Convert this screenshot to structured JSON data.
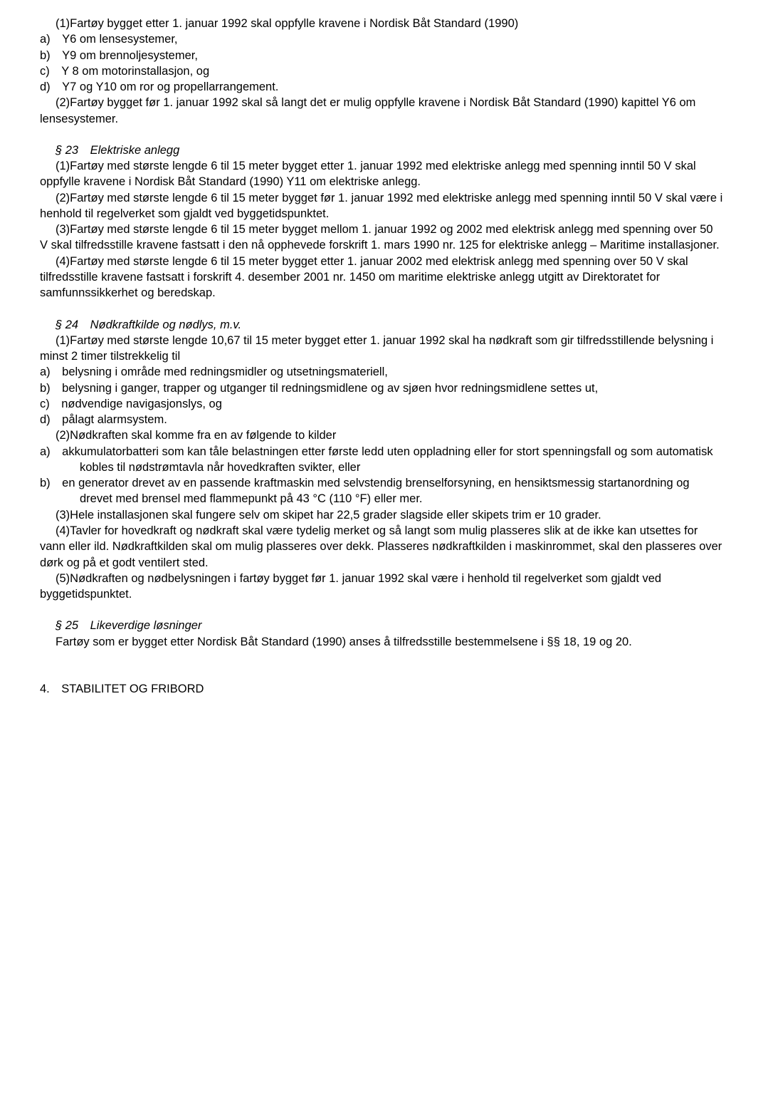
{
  "colors": {
    "text": "#000000",
    "background": "#ffffff"
  },
  "typography": {
    "font_family": "Verdana",
    "font_size_pt": 12,
    "line_height": 1.35
  },
  "p1_1": "(1)Fartøy bygget etter 1. januar 1992 skal oppfylle kravene i Nordisk Båt Standard (1990)",
  "p1_a": "a) Y6 om lensesystemer,",
  "p1_b": "b) Y9 om brennoljesystemer,",
  "p1_c": "c) Y 8 om motorinstallasjon, og",
  "p1_d": "d) Y7 og Y10 om ror og propellarrangement.",
  "p1_2": "(2)Fartøy bygget før 1. januar 1992 skal så langt det er mulig oppfylle kravene i Nordisk Båt Standard (1990) kapittel Y6 om lensesystemer.",
  "s23_h": "§ 23 Elektriske anlegg",
  "s23_1": "(1)Fartøy med største lengde 6 til 15 meter bygget etter 1. januar 1992 med elektriske anlegg med spenning inntil 50 V skal oppfylle kravene i Nordisk Båt Standard (1990) Y11 om elektriske anlegg.",
  "s23_2": "(2)Fartøy med største lengde 6 til 15 meter bygget før 1. januar 1992 med elektriske anlegg med spenning inntil 50 V skal være i henhold til regelverket som gjaldt ved byggetidspunktet.",
  "s23_3": "(3)Fartøy med største lengde 6 til 15 meter bygget mellom 1. januar 1992 og 2002 med elektrisk anlegg med spenning over 50 V skal tilfredsstille kravene fastsatt i den nå opphevede forskrift 1. mars 1990 nr. 125 for elektriske anlegg – Maritime installasjoner.",
  "s23_4": "(4)Fartøy med største lengde 6 til 15 meter bygget etter 1. januar 2002 med elektrisk anlegg med spenning over 50 V skal tilfredsstille kravene fastsatt i forskrift 4. desember 2001 nr. 1450 om maritime elektriske anlegg utgitt av Direktoratet for samfunnssikkerhet og beredskap.",
  "s24_h": "§ 24 Nødkraftkilde og nødlys, m.v.",
  "s24_1": "(1)Fartøy med største lengde 10,67 til 15 meter bygget etter 1. januar 1992 skal ha nødkraft som gir tilfredsstillende belysning i minst 2 timer tilstrekkelig til",
  "s24_a": "a) belysning i område med redningsmidler og utsetningsmateriell,",
  "s24_b": "b) belysning i ganger, trapper og utganger til redningsmidlene og av sjøen hvor redningsmidlene settes ut,",
  "s24_c": "c) nødvendige navigasjonslys, og",
  "s24_d": "d) pålagt alarmsystem.",
  "s24_2": "(2)Nødkraften skal komme fra en av følgende to kilder",
  "s24_2a": "a) akkumulatorbatteri som kan tåle belastningen etter første ledd uten oppladning eller for stort spenningsfall og som automatisk kobles til nødstrømtavla når hovedkraften svikter, eller",
  "s24_2b": "b) en generator drevet av en passende kraftmaskin med selvstendig brenselforsyning, en hensiktsmessig startanordning og drevet med brensel med flammepunkt på 43 °C (110 °F) eller mer.",
  "s24_3": "(3)Hele installasjonen skal fungere selv om skipet har 22,5 grader slagside eller skipets trim er 10 grader.",
  "s24_4": "(4)Tavler for hovedkraft og nødkraft skal være tydelig merket og så langt som mulig plasseres slik at de ikke kan utsettes for vann eller ild. Nødkraftkilden skal om mulig plasseres over dekk. Plasseres nødkraftkilden i maskinrommet, skal den plasseres over dørk og på et godt ventilert sted.",
  "s24_5": "(5)Nødkraften og nødbelysningen i fartøy bygget før 1. januar 1992 skal være i henhold til regelverket som gjaldt ved byggetidspunktet.",
  "s25_h": "§ 25 Likeverdige løsninger",
  "s25_1": "Fartøy som er bygget etter Nordisk Båt Standard (1990) anses å tilfredsstille bestemmelsene i §§ 18, 19 og 20.",
  "ch4": "4. STABILITET OG FRIBORD"
}
